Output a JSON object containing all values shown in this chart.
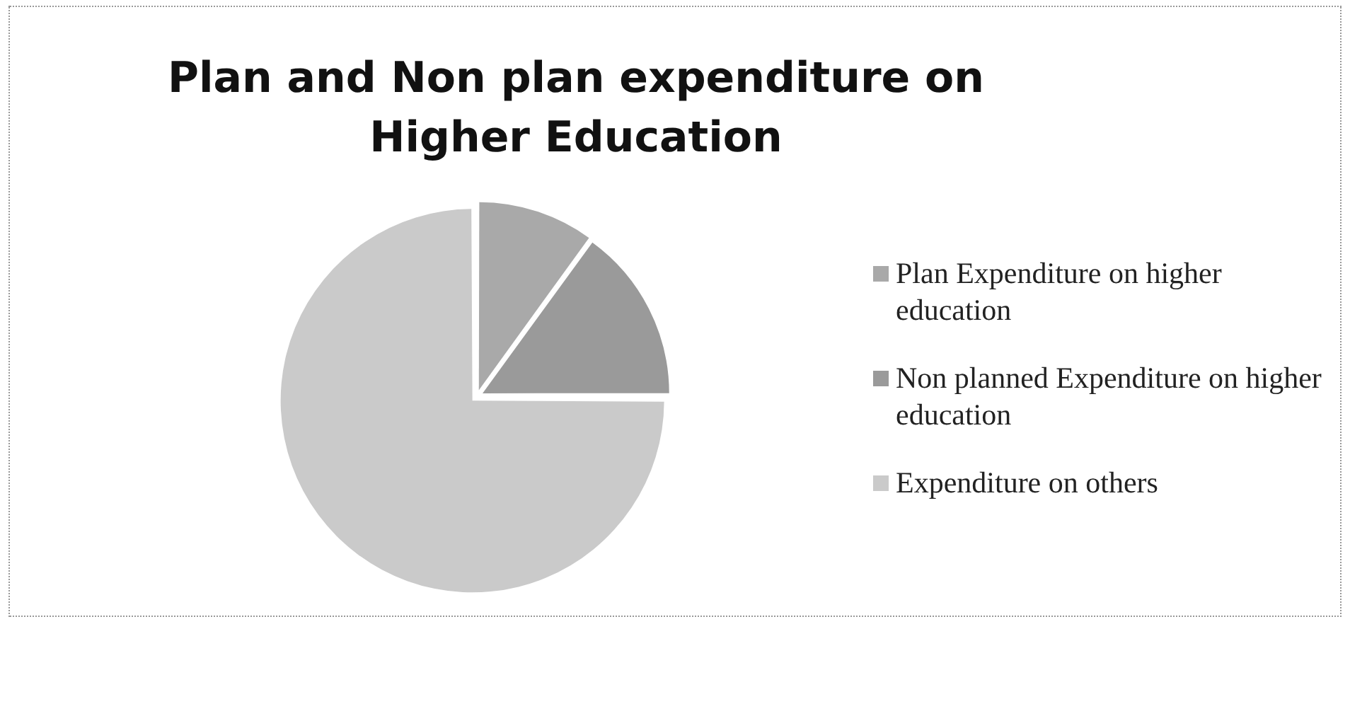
{
  "chart_data": {
    "type": "pie",
    "title": "Plan and Non plan expenditure on Higher Education",
    "categories": [
      "Plan Expenditure on higher education",
      "Non planned Expenditure on higher education",
      "Expenditure on others"
    ],
    "values": [
      10,
      15,
      75
    ],
    "colors": [
      "#a9a9a9",
      "#9a9a9a",
      "#cacaca"
    ],
    "legend": "right"
  }
}
